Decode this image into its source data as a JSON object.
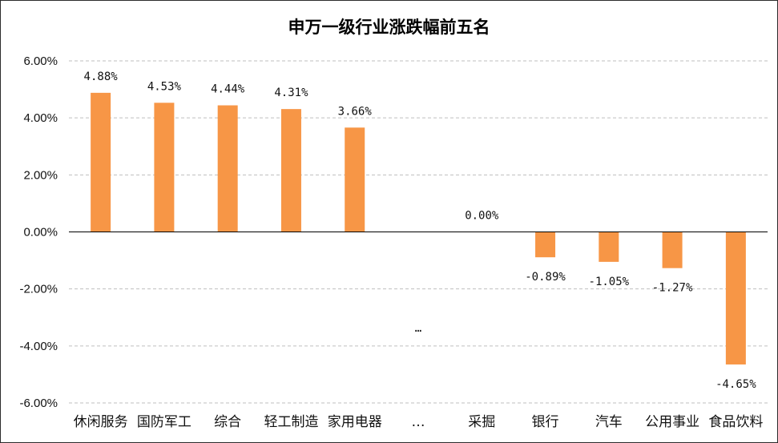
{
  "chart_data": {
    "type": "bar",
    "title": "申万一级行业涨跌幅前五名",
    "xlabel": "",
    "ylabel": "",
    "ylim": [
      -6,
      6
    ],
    "yticks": [
      "6.00%",
      "4.00%",
      "2.00%",
      "0.00%",
      "-2.00%",
      "-4.00%",
      "-6.00%"
    ],
    "ytick_values": [
      6,
      4,
      2,
      0,
      -2,
      -4,
      -6
    ],
    "categories": [
      "休闲服务",
      "国防军工",
      "综合",
      "轻工制造",
      "家用电器",
      "…",
      "采掘",
      "银行",
      "汽车",
      "公用事业",
      "食品饮料"
    ],
    "values": [
      4.88,
      4.53,
      4.44,
      4.31,
      3.66,
      null,
      0.0,
      -0.89,
      -1.05,
      -1.27,
      -4.65
    ],
    "data_labels": [
      "4.88%",
      "4.53%",
      "4.44%",
      "4.31%",
      "3.66%",
      "…",
      "0.00%",
      "-0.89%",
      "-1.05%",
      "-1.27%",
      "-4.65%"
    ],
    "grid": true,
    "legend": "none",
    "bar_color": "#F79646"
  }
}
